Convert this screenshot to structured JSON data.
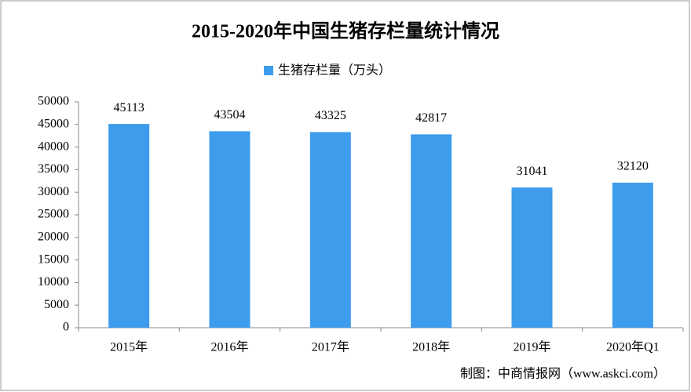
{
  "chart_data": {
    "type": "bar",
    "title": "2015-2020年中国生猪存栏量统计情况",
    "categories": [
      "2015年",
      "2016年",
      "2017年",
      "2018年",
      "2019年",
      "2020年Q1"
    ],
    "series": [
      {
        "name": "生猪存栏量（万头）",
        "color": "#3d9cec",
        "values": [
          45113,
          43504,
          43325,
          42817,
          31041,
          32120
        ]
      }
    ],
    "ylim": [
      0,
      50000
    ],
    "yticks": [
      0,
      5000,
      10000,
      15000,
      20000,
      25000,
      30000,
      35000,
      40000,
      45000,
      50000
    ],
    "source": "制图：中商情报网（www.askci.com）"
  }
}
